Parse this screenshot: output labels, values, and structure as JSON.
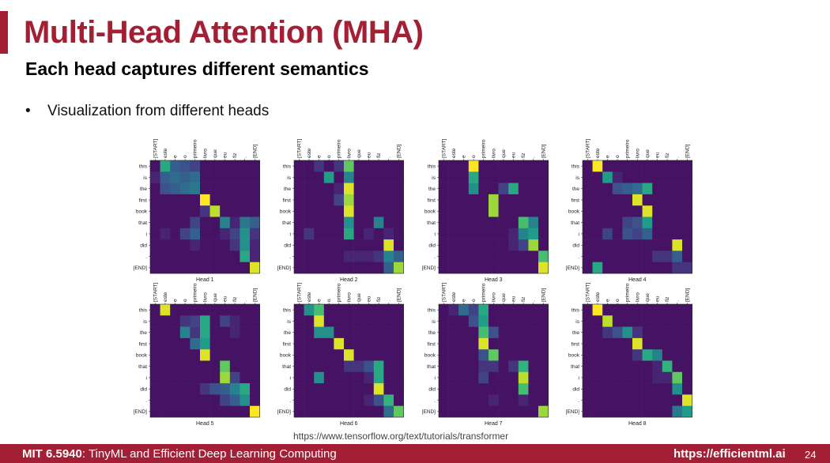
{
  "slide": {
    "title": "Multi-Head Attention (MHA)",
    "subtitle": "Each head captures different semantics",
    "bullet": "Visualization from different heads",
    "source": "https://www.tensorflow.org/text/tutorials/transformer"
  },
  "footer": {
    "course_code": "MIT 6.5940",
    "course_name": ": TinyML and Efficient Deep Learning Computing",
    "site": "https://efficientml.ai",
    "page": "24"
  },
  "colors": {
    "accent": "#a31f34",
    "viridis_low": "#440154",
    "viridis_high": "#fde725"
  },
  "chart_data": {
    "type": "heatmap",
    "x_tokens": [
      "[START]",
      "este",
      "e",
      "o",
      "primeiro",
      "livro",
      "que",
      "eu",
      "fiz",
      ".",
      "[END]"
    ],
    "y_tokens": [
      "this",
      "is",
      "the",
      "first",
      "book",
      "that",
      "i",
      "did",
      ".",
      "[END]"
    ],
    "heads": [
      {
        "name": "Head 1",
        "weights": [
          [
            0.05,
            0.6,
            0.3,
            0.25,
            0.2,
            0.05,
            0.05,
            0.05,
            0.05,
            0.05,
            0.05
          ],
          [
            0.1,
            0.3,
            0.35,
            0.3,
            0.35,
            0.05,
            0.05,
            0.05,
            0.05,
            0.05,
            0.05
          ],
          [
            0.05,
            0.25,
            0.3,
            0.35,
            0.4,
            0.05,
            0.05,
            0.05,
            0.05,
            0.05,
            0.05
          ],
          [
            0.05,
            0.05,
            0.05,
            0.05,
            0.05,
            1.0,
            0.05,
            0.05,
            0.05,
            0.05,
            0.05
          ],
          [
            0.05,
            0.05,
            0.05,
            0.05,
            0.05,
            0.15,
            0.9,
            0.05,
            0.05,
            0.05,
            0.05
          ],
          [
            0.05,
            0.05,
            0.05,
            0.05,
            0.2,
            0.05,
            0.05,
            0.45,
            0.1,
            0.4,
            0.3
          ],
          [
            0.05,
            0.1,
            0.05,
            0.2,
            0.3,
            0.05,
            0.05,
            0.1,
            0.2,
            0.5,
            0.15
          ],
          [
            0.05,
            0.05,
            0.05,
            0.05,
            0.1,
            0.05,
            0.05,
            0.05,
            0.15,
            0.5,
            0.1
          ],
          [
            0.05,
            0.05,
            0.05,
            0.05,
            0.05,
            0.05,
            0.05,
            0.05,
            0.05,
            0.6,
            0.1
          ],
          [
            0.05,
            0.05,
            0.05,
            0.05,
            0.05,
            0.05,
            0.05,
            0.05,
            0.05,
            0.05,
            0.95
          ]
        ]
      },
      {
        "name": "Head 2",
        "weights": [
          [
            0.05,
            0.05,
            0.15,
            0.05,
            0.15,
            0.75,
            0.05,
            0.05,
            0.05,
            0.05,
            0.05
          ],
          [
            0.05,
            0.05,
            0.05,
            0.55,
            0.05,
            0.45,
            0.05,
            0.05,
            0.05,
            0.05,
            0.05
          ],
          [
            0.05,
            0.05,
            0.05,
            0.05,
            0.1,
            0.95,
            0.05,
            0.05,
            0.05,
            0.05,
            0.05
          ],
          [
            0.05,
            0.05,
            0.05,
            0.05,
            0.2,
            0.85,
            0.05,
            0.05,
            0.05,
            0.05,
            0.05
          ],
          [
            0.05,
            0.05,
            0.05,
            0.05,
            0.05,
            0.95,
            0.05,
            0.05,
            0.05,
            0.05,
            0.05
          ],
          [
            0.05,
            0.05,
            0.05,
            0.05,
            0.05,
            0.5,
            0.05,
            0.05,
            0.45,
            0.05,
            0.05
          ],
          [
            0.05,
            0.15,
            0.05,
            0.05,
            0.05,
            0.6,
            0.05,
            0.1,
            0.05,
            0.1,
            0.05
          ],
          [
            0.05,
            0.05,
            0.05,
            0.05,
            0.05,
            0.05,
            0.05,
            0.05,
            0.05,
            0.95,
            0.05
          ],
          [
            0.05,
            0.05,
            0.05,
            0.05,
            0.05,
            0.1,
            0.1,
            0.1,
            0.15,
            0.45,
            0.3
          ],
          [
            0.05,
            0.05,
            0.05,
            0.05,
            0.05,
            0.05,
            0.05,
            0.05,
            0.05,
            0.3,
            0.85
          ]
        ]
      },
      {
        "name": "Head 3",
        "weights": [
          [
            0.05,
            0.05,
            0.05,
            1.0,
            0.05,
            0.05,
            0.05,
            0.05,
            0.05,
            0.05,
            0.05
          ],
          [
            0.05,
            0.05,
            0.05,
            0.6,
            0.05,
            0.05,
            0.05,
            0.05,
            0.05,
            0.05,
            0.05
          ],
          [
            0.05,
            0.05,
            0.05,
            0.5,
            0.05,
            0.05,
            0.2,
            0.6,
            0.05,
            0.05,
            0.05
          ],
          [
            0.05,
            0.05,
            0.05,
            0.05,
            0.05,
            0.85,
            0.05,
            0.05,
            0.05,
            0.05,
            0.05
          ],
          [
            0.05,
            0.05,
            0.05,
            0.05,
            0.05,
            0.85,
            0.05,
            0.05,
            0.05,
            0.05,
            0.05
          ],
          [
            0.05,
            0.05,
            0.05,
            0.05,
            0.05,
            0.05,
            0.05,
            0.05,
            0.7,
            0.45,
            0.05
          ],
          [
            0.05,
            0.05,
            0.05,
            0.05,
            0.05,
            0.05,
            0.05,
            0.1,
            0.45,
            0.55,
            0.05
          ],
          [
            0.05,
            0.05,
            0.05,
            0.05,
            0.05,
            0.05,
            0.05,
            0.1,
            0.2,
            0.85,
            0.05
          ],
          [
            0.05,
            0.05,
            0.05,
            0.05,
            0.05,
            0.05,
            0.05,
            0.05,
            0.05,
            0.05,
            0.7
          ],
          [
            0.05,
            0.05,
            0.05,
            0.05,
            0.05,
            0.05,
            0.05,
            0.05,
            0.05,
            0.05,
            0.95
          ]
        ]
      },
      {
        "name": "Head 4",
        "weights": [
          [
            0.05,
            1.0,
            0.05,
            0.05,
            0.05,
            0.05,
            0.05,
            0.05,
            0.05,
            0.05,
            0.05
          ],
          [
            0.05,
            0.05,
            0.55,
            0.1,
            0.05,
            0.05,
            0.05,
            0.05,
            0.05,
            0.05,
            0.05
          ],
          [
            0.05,
            0.05,
            0.05,
            0.25,
            0.3,
            0.35,
            0.6,
            0.05,
            0.05,
            0.05,
            0.05
          ],
          [
            0.05,
            0.05,
            0.05,
            0.05,
            0.05,
            0.95,
            0.05,
            0.05,
            0.05,
            0.05,
            0.05
          ],
          [
            0.05,
            0.05,
            0.05,
            0.05,
            0.05,
            0.05,
            0.95,
            0.05,
            0.05,
            0.05,
            0.05
          ],
          [
            0.05,
            0.05,
            0.05,
            0.05,
            0.2,
            0.25,
            0.55,
            0.05,
            0.05,
            0.05,
            0.05
          ],
          [
            0.05,
            0.05,
            0.2,
            0.05,
            0.25,
            0.2,
            0.3,
            0.05,
            0.05,
            0.05,
            0.05
          ],
          [
            0.05,
            0.05,
            0.05,
            0.05,
            0.05,
            0.05,
            0.05,
            0.05,
            0.05,
            0.95,
            0.05
          ],
          [
            0.05,
            0.05,
            0.05,
            0.05,
            0.05,
            0.05,
            0.05,
            0.15,
            0.15,
            0.3,
            0.05
          ],
          [
            0.05,
            0.6,
            0.05,
            0.05,
            0.05,
            0.05,
            0.05,
            0.05,
            0.05,
            0.15,
            0.15
          ]
        ]
      },
      {
        "name": "Head 5",
        "weights": [
          [
            0.05,
            0.95,
            0.05,
            0.05,
            0.05,
            0.05,
            0.05,
            0.05,
            0.05,
            0.05,
            0.05
          ],
          [
            0.05,
            0.05,
            0.05,
            0.15,
            0.2,
            0.6,
            0.05,
            0.2,
            0.1,
            0.05,
            0.05
          ],
          [
            0.05,
            0.05,
            0.05,
            0.45,
            0.15,
            0.6,
            0.05,
            0.05,
            0.1,
            0.05,
            0.05
          ],
          [
            0.05,
            0.05,
            0.05,
            0.05,
            0.35,
            0.55,
            0.05,
            0.05,
            0.05,
            0.05,
            0.05
          ],
          [
            0.05,
            0.05,
            0.05,
            0.05,
            0.05,
            0.95,
            0.05,
            0.05,
            0.05,
            0.05,
            0.05
          ],
          [
            0.05,
            0.05,
            0.05,
            0.05,
            0.05,
            0.05,
            0.05,
            0.75,
            0.05,
            0.05,
            0.05
          ],
          [
            0.05,
            0.05,
            0.05,
            0.05,
            0.05,
            0.05,
            0.05,
            0.85,
            0.2,
            0.05,
            0.05
          ],
          [
            0.05,
            0.05,
            0.05,
            0.05,
            0.05,
            0.15,
            0.25,
            0.3,
            0.45,
            0.6,
            0.05
          ],
          [
            0.05,
            0.05,
            0.05,
            0.05,
            0.05,
            0.05,
            0.05,
            0.2,
            0.3,
            0.5,
            0.05
          ],
          [
            0.05,
            0.05,
            0.05,
            0.05,
            0.05,
            0.05,
            0.05,
            0.05,
            0.05,
            0.05,
            1.0
          ]
        ]
      },
      {
        "name": "Head 6",
        "weights": [
          [
            0.05,
            0.5,
            0.7,
            0.05,
            0.05,
            0.05,
            0.05,
            0.05,
            0.05,
            0.05,
            0.05
          ],
          [
            0.05,
            0.05,
            0.95,
            0.05,
            0.05,
            0.05,
            0.05,
            0.05,
            0.05,
            0.05,
            0.05
          ],
          [
            0.05,
            0.05,
            0.5,
            0.5,
            0.05,
            0.05,
            0.05,
            0.05,
            0.05,
            0.05,
            0.05
          ],
          [
            0.05,
            0.05,
            0.05,
            0.05,
            0.95,
            0.05,
            0.05,
            0.05,
            0.05,
            0.05,
            0.05
          ],
          [
            0.05,
            0.05,
            0.05,
            0.05,
            0.05,
            0.95,
            0.05,
            0.05,
            0.05,
            0.05,
            0.05
          ],
          [
            0.05,
            0.05,
            0.05,
            0.05,
            0.05,
            0.15,
            0.15,
            0.25,
            0.6,
            0.05,
            0.05
          ],
          [
            0.05,
            0.05,
            0.5,
            0.05,
            0.05,
            0.05,
            0.05,
            0.1,
            0.6,
            0.05,
            0.05
          ],
          [
            0.05,
            0.05,
            0.05,
            0.05,
            0.05,
            0.05,
            0.05,
            0.05,
            0.95,
            0.05,
            0.05
          ],
          [
            0.05,
            0.05,
            0.05,
            0.05,
            0.05,
            0.05,
            0.05,
            0.1,
            0.25,
            0.65,
            0.05
          ],
          [
            0.05,
            0.05,
            0.05,
            0.05,
            0.05,
            0.05,
            0.05,
            0.05,
            0.05,
            0.35,
            0.75
          ]
        ]
      },
      {
        "name": "Head 7",
        "weights": [
          [
            0.05,
            0.1,
            0.35,
            0.2,
            0.6,
            0.05,
            0.05,
            0.05,
            0.05,
            0.05,
            0.05
          ],
          [
            0.05,
            0.05,
            0.05,
            0.25,
            0.55,
            0.05,
            0.05,
            0.05,
            0.05,
            0.05,
            0.05
          ],
          [
            0.05,
            0.05,
            0.05,
            0.05,
            0.7,
            0.25,
            0.05,
            0.05,
            0.05,
            0.05,
            0.05
          ],
          [
            0.05,
            0.05,
            0.05,
            0.05,
            0.95,
            0.05,
            0.05,
            0.05,
            0.05,
            0.05,
            0.05
          ],
          [
            0.05,
            0.05,
            0.05,
            0.05,
            0.25,
            0.75,
            0.05,
            0.05,
            0.05,
            0.05,
            0.05
          ],
          [
            0.05,
            0.05,
            0.05,
            0.05,
            0.15,
            0.15,
            0.05,
            0.15,
            0.65,
            0.05,
            0.05
          ],
          [
            0.05,
            0.05,
            0.05,
            0.05,
            0.2,
            0.05,
            0.05,
            0.05,
            0.9,
            0.05,
            0.05
          ],
          [
            0.05,
            0.05,
            0.05,
            0.05,
            0.05,
            0.05,
            0.05,
            0.05,
            0.7,
            0.05,
            0.05
          ],
          [
            0.05,
            0.05,
            0.05,
            0.05,
            0.05,
            0.1,
            0.05,
            0.05,
            0.1,
            0.05,
            0.05
          ],
          [
            0.05,
            0.05,
            0.05,
            0.05,
            0.05,
            0.05,
            0.05,
            0.05,
            0.05,
            0.05,
            0.85
          ]
        ]
      },
      {
        "name": "Head 8",
        "weights": [
          [
            0.05,
            1.0,
            0.05,
            0.05,
            0.05,
            0.05,
            0.05,
            0.05,
            0.05,
            0.05,
            0.05
          ],
          [
            0.05,
            0.05,
            0.9,
            0.05,
            0.05,
            0.05,
            0.05,
            0.05,
            0.05,
            0.05,
            0.05
          ],
          [
            0.05,
            0.05,
            0.15,
            0.25,
            0.5,
            0.15,
            0.05,
            0.05,
            0.05,
            0.05,
            0.05
          ],
          [
            0.05,
            0.05,
            0.05,
            0.05,
            0.05,
            0.95,
            0.05,
            0.05,
            0.05,
            0.05,
            0.05
          ],
          [
            0.05,
            0.05,
            0.05,
            0.05,
            0.05,
            0.15,
            0.6,
            0.45,
            0.05,
            0.05,
            0.05
          ],
          [
            0.05,
            0.05,
            0.05,
            0.05,
            0.05,
            0.05,
            0.05,
            0.1,
            0.65,
            0.05,
            0.05
          ],
          [
            0.05,
            0.05,
            0.05,
            0.05,
            0.05,
            0.05,
            0.05,
            0.1,
            0.1,
            0.75,
            0.05
          ],
          [
            0.05,
            0.05,
            0.05,
            0.05,
            0.05,
            0.05,
            0.05,
            0.05,
            0.05,
            0.5,
            0.05
          ],
          [
            0.05,
            0.05,
            0.05,
            0.05,
            0.05,
            0.05,
            0.05,
            0.05,
            0.05,
            0.05,
            0.95
          ],
          [
            0.05,
            0.05,
            0.05,
            0.05,
            0.05,
            0.05,
            0.05,
            0.05,
            0.05,
            0.4,
            0.55
          ]
        ]
      }
    ]
  }
}
